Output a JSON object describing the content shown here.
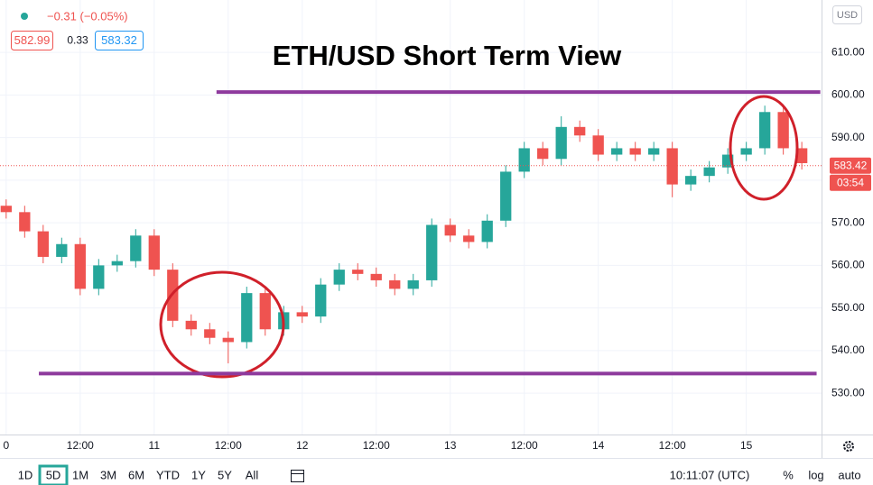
{
  "chart_data": {
    "type": "candlestick",
    "title": "ETH/USD Short Term View",
    "header": {
      "change": "−0.31 (−0.05%)",
      "bid": "582.99",
      "spread": "0.33",
      "ask": "583.32"
    },
    "currency": "USD",
    "xlim": [
      -1,
      132.2
    ],
    "ylim": [
      520.3,
      622.3
    ],
    "xticks": [
      0,
      {
        "value": 12,
        "label": "12:00"
      },
      {
        "value": 24,
        "label": "11"
      },
      {
        "value": 36,
        "label": "12:00"
      },
      {
        "value": 48,
        "label": "12"
      },
      {
        "value": 60,
        "label": "12:00"
      },
      {
        "value": 72,
        "label": "13"
      },
      {
        "value": 84,
        "label": "12:00"
      },
      {
        "value": 96,
        "label": "14"
      },
      {
        "value": 108,
        "label": "12:00"
      },
      {
        "value": 120,
        "label": "15"
      }
    ],
    "yticks": [
      {
        "value": 530,
        "label": "530.00"
      },
      {
        "value": 540,
        "label": "540.00"
      },
      {
        "value": 550,
        "label": "550.00"
      },
      {
        "value": 560,
        "label": "560.00"
      },
      {
        "value": 570,
        "label": "570.00"
      },
      {
        "value": 580,
        "label": "580.00"
      },
      {
        "value": 590,
        "label": "590.00"
      },
      {
        "value": 600,
        "label": "600.00"
      },
      {
        "value": 610,
        "label": "610.00"
      }
    ],
    "grid": true,
    "up_color": "#26a69a",
    "down_color": "#ef5350",
    "x": [
      0,
      3,
      6,
      9,
      12,
      15,
      18,
      21,
      24,
      27,
      30,
      33,
      36,
      39,
      42,
      45,
      48,
      51,
      54,
      57,
      60,
      63,
      66,
      69,
      72,
      75,
      78,
      81,
      84,
      87,
      90,
      93,
      96,
      99,
      102,
      105,
      108,
      111,
      114,
      117,
      120,
      123,
      126,
      129
    ],
    "open": [
      574,
      572.5,
      568,
      562,
      565,
      554.5,
      560,
      561,
      567,
      559,
      547,
      545,
      543,
      542,
      553.5,
      545,
      549,
      548,
      555.5,
      559,
      558,
      556.5,
      554.5,
      556.5,
      569.5,
      567,
      565.5,
      570.5,
      582,
      587.5,
      585,
      592.5,
      590.5,
      586,
      587.5,
      586,
      587.5,
      579,
      581,
      583,
      586,
      587.5,
      596,
      587.5
    ],
    "high": [
      575.5,
      574,
      569.5,
      566.5,
      566.5,
      561.5,
      562.5,
      568.5,
      568.5,
      560.5,
      548.5,
      546.5,
      544.5,
      555,
      555,
      550.5,
      550.5,
      557,
      560.5,
      560.5,
      559.5,
      558,
      558,
      571,
      571,
      568.5,
      572,
      583.5,
      589,
      589,
      595,
      594,
      592,
      589,
      589,
      589,
      589,
      582.5,
      584.5,
      587.5,
      589,
      597.5,
      597.5,
      589
    ],
    "low": [
      571,
      566.5,
      560.5,
      560.5,
      553,
      553,
      558.5,
      559.5,
      557.5,
      545.5,
      543.5,
      541.5,
      537,
      540.5,
      543.5,
      543.5,
      546.5,
      546.5,
      554,
      556.5,
      555,
      553,
      553,
      555,
      565.5,
      564,
      564,
      569,
      580.5,
      583.5,
      583.5,
      589,
      584.5,
      584.5,
      584.5,
      584.5,
      576,
      577.5,
      579.5,
      581.5,
      584.5,
      586,
      586,
      582.5
    ],
    "close": [
      572.5,
      568,
      562,
      565,
      554.5,
      560,
      561,
      567,
      559,
      547,
      545,
      543,
      542,
      553.5,
      545,
      549,
      548,
      555.5,
      559,
      558,
      556.5,
      554.5,
      556.5,
      569.5,
      567,
      565.5,
      570.5,
      582,
      587.5,
      585,
      592.5,
      590.5,
      586,
      587.5,
      586,
      587.5,
      579,
      581,
      583,
      586,
      587.5,
      596,
      587.5,
      584
    ],
    "levels": [
      {
        "value": 600.7,
        "x": [
          34.1,
          132
        ],
        "color": "#8e3a9d"
      },
      {
        "value": 534.6,
        "x": [
          5.3,
          131.4
        ],
        "color": "#8e3a9d"
      }
    ],
    "last_price": 583.42,
    "countdown": "03:54",
    "toolbar": {
      "ranges": [
        "1D",
        "5D",
        "1M",
        "3M",
        "6M",
        "YTD",
        "1Y",
        "5Y",
        "All"
      ],
      "selected": 1,
      "clock": "10:11:07 (UTC)",
      "options": [
        "%",
        "log",
        "auto"
      ]
    }
  }
}
